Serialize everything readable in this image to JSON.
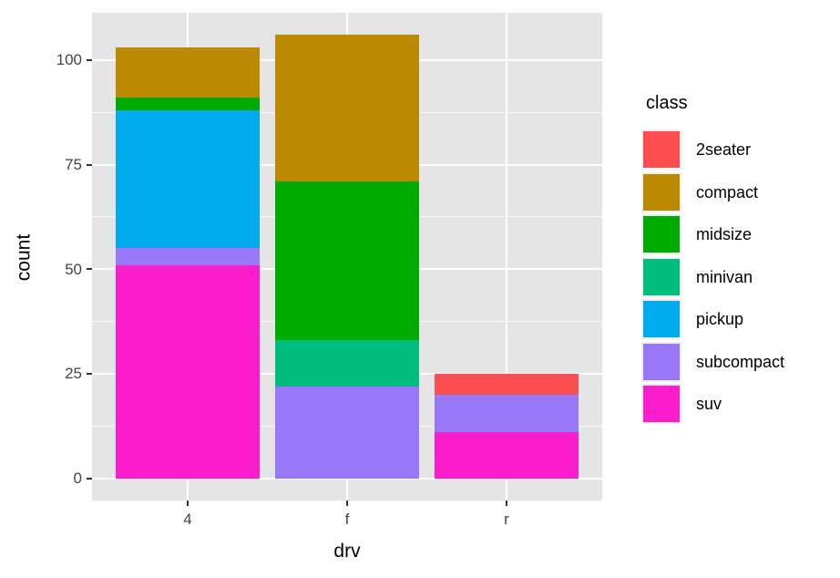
{
  "chart_data": {
    "type": "bar",
    "stacked": true,
    "title": "",
    "xlabel": "drv",
    "ylabel": "count",
    "categories": [
      "4",
      "f",
      "r"
    ],
    "series": [
      {
        "name": "2seater",
        "color": "#FC4E4E",
        "values": [
          0,
          0,
          5
        ]
      },
      {
        "name": "compact",
        "color": "#BC8A00",
        "values": [
          12,
          35,
          0
        ]
      },
      {
        "name": "midsize",
        "color": "#00AB00",
        "values": [
          3,
          38,
          0
        ]
      },
      {
        "name": "minivan",
        "color": "#00BC7D",
        "values": [
          0,
          11,
          0
        ]
      },
      {
        "name": "pickup",
        "color": "#00ACEE",
        "values": [
          33,
          0,
          0
        ]
      },
      {
        "name": "subcompact",
        "color": "#9878F8",
        "values": [
          4,
          22,
          9
        ]
      },
      {
        "name": "suv",
        "color": "#FB1DCB",
        "values": [
          51,
          0,
          11
        ]
      }
    ],
    "stack_order": "first series on top",
    "totals": [
      103,
      106,
      25
    ],
    "y_ticks": [
      0,
      25,
      50,
      75,
      100
    ],
    "y_minor_ticks": [
      12.5,
      37.5,
      62.5,
      87.5
    ],
    "ylim": [
      -5.3,
      111.3
    ],
    "grid": true,
    "legend": {
      "title": "class",
      "position": "right"
    },
    "colors": {
      "panel_background": "#E5E5E5",
      "gridline": "#FFFFFF",
      "tick_text": "#454545",
      "legend_key_background": "#EFEFEF"
    }
  }
}
